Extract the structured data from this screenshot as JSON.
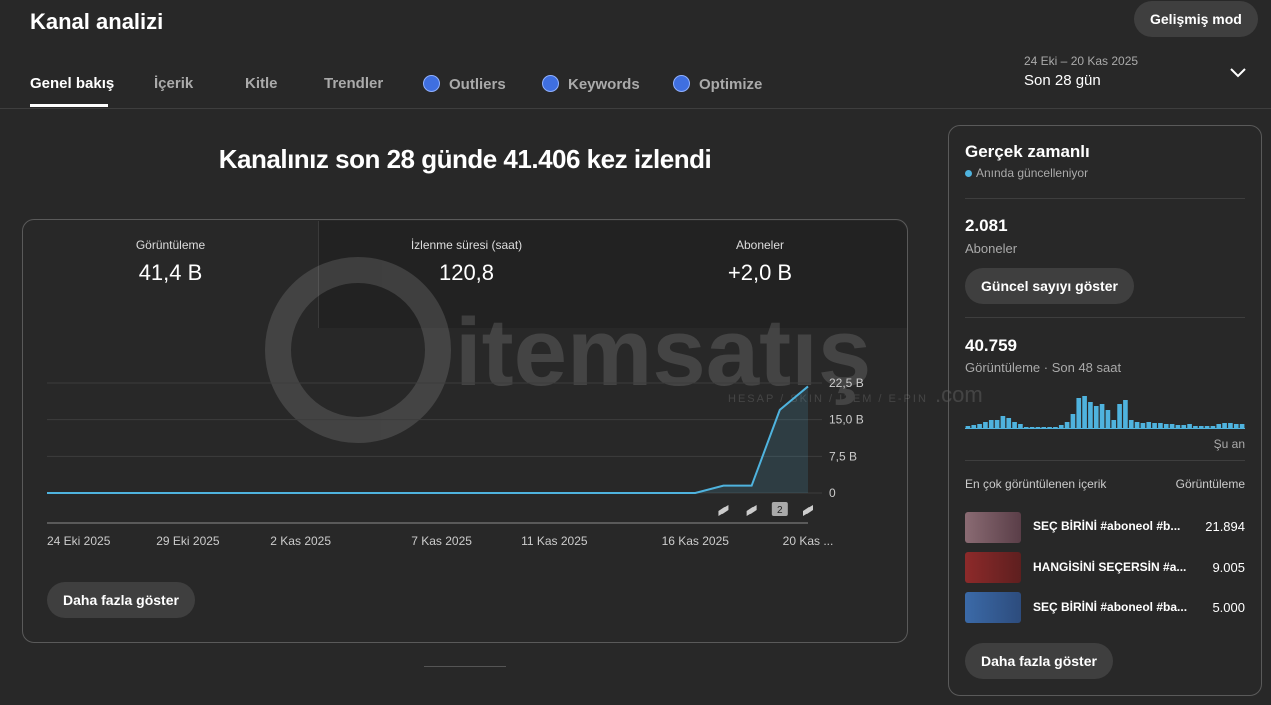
{
  "header": {
    "title": "Kanal analizi",
    "advanced_button": "Gelişmiş mod"
  },
  "tabs": [
    "Genel bakış",
    "İçerik",
    "Kitle",
    "Trendler",
    "Outliers",
    "Keywords",
    "Optimize"
  ],
  "date_range": {
    "range": "24 Eki – 20 Kas 2025",
    "label": "Son 28 gün"
  },
  "summary": "Kanalınız son 28 günde 41.406 kez izlendi",
  "metrics": [
    {
      "label": "Görüntüleme",
      "value": "41,4 B"
    },
    {
      "label": "İzlenme süresi (saat)",
      "value": "120,8"
    },
    {
      "label": "Aboneler",
      "value": "+2,0 B"
    }
  ],
  "chart_data": {
    "type": "line",
    "categories": [
      "24 Eki 2025",
      null,
      null,
      null,
      null,
      "29 Eki 2025",
      null,
      null,
      null,
      "2 Kas 2025",
      null,
      null,
      null,
      null,
      "7 Kas 2025",
      null,
      null,
      null,
      "11 Kas 2025",
      null,
      null,
      null,
      null,
      "16 Kas 2025",
      null,
      null,
      null,
      "20 Kas ..."
    ],
    "values": [
      0,
      0,
      0,
      0,
      0,
      0,
      0,
      0,
      0,
      0,
      0,
      0,
      0,
      0,
      0,
      0,
      0,
      0,
      0,
      0,
      0,
      0,
      0,
      0,
      1.5,
      1.5,
      17,
      21.8
    ],
    "color": "#4fb3de",
    "ylim": [
      0,
      22.5
    ],
    "yticks": [
      0,
      {
        "value": 7.5,
        "label": "7,5 B"
      },
      {
        "value": 15,
        "label": "15,0 B"
      },
      {
        "value": 22.5,
        "label": "22,5 B"
      }
    ],
    "grid": true,
    "annotation": "2"
  },
  "more_button": "Daha fazla göster",
  "watermark": {
    "brand": "itemsatış",
    "tagline": "HESAP / SKIN / ITEM / E-PIN",
    "domain": ".com"
  },
  "realtime": {
    "title": "Gerçek zamanlı",
    "subtitle": "Anında güncelleniyor",
    "subscribers": {
      "value": "2.081",
      "label": "Aboneler"
    },
    "refresh_button": "Güncel sayıyı göster",
    "views": {
      "value": "40.759",
      "label": "Görüntüleme · Son 48 saat"
    },
    "bar_chart": {
      "type": "bar",
      "color": "#4fb3de",
      "values": [
        210,
        315,
        420,
        630,
        840,
        840,
        1260,
        1050,
        630,
        420,
        105,
        105,
        105,
        105,
        105,
        105,
        315,
        630,
        1470,
        3150,
        3360,
        2730,
        2310,
        2520,
        1890,
        840,
        2520,
        2940,
        840,
        630,
        525,
        630,
        525,
        525,
        420,
        420,
        315,
        315,
        420,
        210,
        210,
        210,
        210,
        420,
        525,
        525,
        420,
        420
      ],
      "end_label": "Şu an"
    },
    "top_content": {
      "title": "En çok görüntülenen içerik",
      "column": "Görüntüleme",
      "items": [
        {
          "title": "SEÇ BİRİNİ #aboneol #b...",
          "views": "21.894"
        },
        {
          "title": "HANGİSİNİ SEÇERSİN #a...",
          "views": "9.005"
        },
        {
          "title": "SEÇ BİRİNİ #aboneol #ba...",
          "views": "5.000"
        }
      ]
    },
    "more_button": "Daha fazla göster"
  }
}
